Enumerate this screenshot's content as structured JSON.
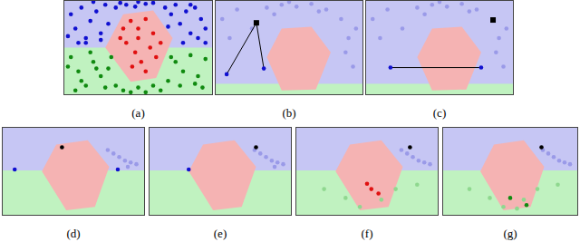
{
  "chart_data": [
    {
      "type": "scatter",
      "title": "(a)",
      "xlim": [
        0,
        100
      ],
      "ylim": [
        0,
        100
      ],
      "tick_labels": false,
      "series": [
        {
          "color": "#1010d0",
          "marker": "circle",
          "x": [
            5,
            8,
            12,
            15,
            18,
            22,
            25,
            28,
            10,
            20,
            30,
            35,
            38,
            42,
            48,
            55,
            60,
            68,
            72,
            75,
            78,
            82,
            85,
            88,
            92,
            95,
            80,
            90,
            70,
            3,
            15,
            25,
            85,
            95,
            50
          ],
          "values": [
            85,
            70,
            92,
            60,
            78,
            88,
            65,
            95,
            55,
            98,
            75,
            92,
            97,
            95,
            93,
            96,
            97,
            92,
            85,
            95,
            75,
            88,
            65,
            92,
            80,
            70,
            55,
            60,
            72,
            62,
            55,
            58,
            95,
            55,
            98
          ]
        },
        {
          "color": "#e01010",
          "marker": "circle",
          "x": [
            40,
            45,
            50,
            55,
            60,
            48,
            52,
            58,
            42,
            65,
            38,
            55,
            62,
            46,
            50
          ],
          "values": [
            70,
            78,
            60,
            80,
            65,
            45,
            35,
            50,
            55,
            55,
            60,
            25,
            40,
            30,
            70
          ]
        },
        {
          "color": "#108a10",
          "marker": "circle",
          "x": [
            5,
            10,
            15,
            20,
            25,
            8,
            18,
            28,
            35,
            40,
            50,
            55,
            60,
            70,
            75,
            80,
            85,
            90,
            95,
            12,
            22,
            32,
            45,
            65,
            78,
            88,
            3,
            93,
            30,
            72
          ],
          "values": [
            40,
            25,
            10,
            35,
            20,
            5,
            45,
            8,
            10,
            5,
            8,
            3,
            10,
            15,
            35,
            25,
            42,
            20,
            38,
            15,
            28,
            40,
            3,
            5,
            10,
            12,
            30,
            8,
            28,
            40
          ]
        }
      ]
    },
    {
      "type": "scatter",
      "title": "(b)",
      "xlim": [
        0,
        100
      ],
      "ylim": [
        0,
        100
      ],
      "tick_labels": false,
      "series": [
        {
          "color": "#9a9ae8",
          "marker": "circle",
          "x": [
            5,
            15,
            25,
            35,
            45,
            55,
            65,
            75,
            85,
            95,
            10,
            40,
            50,
            70,
            90,
            88,
            93
          ],
          "values": [
            80,
            90,
            70,
            92,
            95,
            93,
            96,
            90,
            80,
            70,
            60,
            85,
            98,
            88,
            60,
            45,
            30
          ]
        },
        {
          "color": "#000000",
          "type": "line",
          "marker": "none",
          "x": [
            8,
            28,
            33
          ],
          "values": [
            22,
            76,
            28
          ]
        },
        {
          "color": "#1010d0",
          "marker": "circle",
          "x": [
            8,
            33
          ],
          "values": [
            22,
            28
          ]
        },
        {
          "color": "#000000",
          "marker": "square",
          "x": [
            28
          ],
          "values": [
            76
          ]
        }
      ]
    },
    {
      "type": "scatter",
      "title": "(c)",
      "xlim": [
        0,
        100
      ],
      "ylim": [
        0,
        100
      ],
      "tick_labels": false,
      "series": [
        {
          "color": "#9a9ae8",
          "marker": "circle",
          "x": [
            5,
            15,
            25,
            35,
            45,
            55,
            65,
            75,
            95,
            10,
            40,
            50,
            70,
            90,
            88,
            93
          ],
          "values": [
            80,
            90,
            70,
            92,
            95,
            93,
            96,
            90,
            70,
            60,
            85,
            98,
            88,
            60,
            45,
            30
          ]
        },
        {
          "color": "#000000",
          "type": "line",
          "marker": "none",
          "x": [
            17,
            78
          ],
          "values": [
            29,
            29
          ]
        },
        {
          "color": "#1010d0",
          "marker": "circle",
          "x": [
            17,
            78
          ],
          "values": [
            29,
            29
          ]
        },
        {
          "color": "#000000",
          "marker": "square",
          "x": [
            86
          ],
          "values": [
            79
          ]
        }
      ]
    },
    {
      "type": "scatter",
      "title": "(d)",
      "xlim": [
        0,
        100
      ],
      "ylim": [
        0,
        100
      ],
      "tick_labels": false,
      "series": [
        {
          "color": "#9a9ae8",
          "marker": "circle",
          "x": [
            78,
            82,
            86,
            90,
            94,
            74,
            88
          ],
          "values": [
            70,
            66,
            62,
            60,
            58,
            74,
            55
          ]
        },
        {
          "color": "#1010d0",
          "marker": "circle",
          "x": [
            9,
            81
          ],
          "values": [
            52,
            52
          ]
        },
        {
          "color": "#000000",
          "marker": "circle",
          "x": [
            42
          ],
          "values": [
            77
          ]
        }
      ]
    },
    {
      "type": "scatter",
      "title": "(e)",
      "xlim": [
        0,
        100
      ],
      "ylim": [
        0,
        100
      ],
      "tick_labels": false,
      "series": [
        {
          "color": "#9a9ae8",
          "marker": "circle",
          "x": [
            78,
            82,
            86,
            90,
            94,
            74,
            88
          ],
          "values": [
            70,
            66,
            62,
            60,
            58,
            74,
            55
          ]
        },
        {
          "color": "#1010d0",
          "marker": "circle",
          "x": [
            28
          ],
          "values": [
            52
          ]
        },
        {
          "color": "#000000",
          "marker": "circle",
          "x": [
            75
          ],
          "values": [
            77
          ]
        }
      ]
    },
    {
      "type": "scatter",
      "title": "(f)",
      "xlim": [
        0,
        100
      ],
      "ylim": [
        0,
        100
      ],
      "tick_labels": false,
      "series": [
        {
          "color": "#9a9ae8",
          "marker": "circle",
          "x": [
            78,
            82,
            86,
            90,
            94,
            74
          ],
          "values": [
            70,
            66,
            62,
            60,
            58,
            74
          ]
        },
        {
          "color": "#8fd88f",
          "marker": "circle",
          "x": [
            20,
            35,
            60,
            70,
            85,
            45
          ],
          "values": [
            30,
            20,
            18,
            30,
            35,
            10
          ]
        },
        {
          "color": "#e01010",
          "marker": "circle",
          "x": [
            50,
            53,
            58
          ],
          "values": [
            36,
            30,
            25
          ]
        },
        {
          "color": "#000000",
          "marker": "circle",
          "x": [
            80
          ],
          "values": [
            77
          ]
        }
      ]
    },
    {
      "type": "scatter",
      "title": "(g)",
      "xlim": [
        0,
        100
      ],
      "ylim": [
        0,
        100
      ],
      "tick_labels": false,
      "series": [
        {
          "color": "#9a9ae8",
          "marker": "circle",
          "x": [
            78,
            82,
            86,
            90,
            94,
            74
          ],
          "values": [
            70,
            66,
            62,
            60,
            58,
            74
          ]
        },
        {
          "color": "#8fd88f",
          "marker": "circle",
          "x": [
            20,
            35,
            60,
            70,
            85,
            45,
            55
          ],
          "values": [
            30,
            20,
            18,
            30,
            35,
            10,
            8
          ]
        },
        {
          "color": "#108a10",
          "marker": "circle",
          "x": [
            50,
            62
          ],
          "values": [
            20,
            12
          ]
        },
        {
          "color": "#000000",
          "marker": "circle",
          "x": [
            73
          ],
          "values": [
            77
          ]
        }
      ]
    }
  ]
}
